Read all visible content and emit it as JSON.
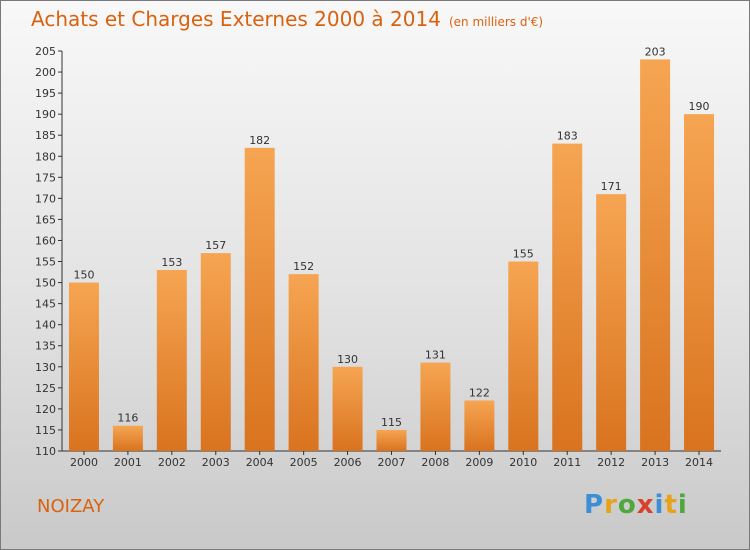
{
  "header": {
    "title": "Achats et Charges Externes 2000 à 2014",
    "subtitle": "(en milliers d'€)"
  },
  "footer": {
    "town": "NOIZAY",
    "brand": [
      "P",
      "r",
      "o",
      "x",
      "i",
      "t",
      "i"
    ]
  },
  "colors": {
    "title": "#d9620f",
    "bar_top": "#f6a552",
    "bar_bottom": "#d9731f",
    "brand": [
      "#3b8fd4",
      "#e8a21a",
      "#4fa83d",
      "#d8402c",
      "#3b8fd4",
      "#e8a21a",
      "#4fa83d"
    ]
  },
  "chart_data": {
    "type": "bar",
    "title": "Achats et Charges Externes 2000 à 2014",
    "subtitle": "(en milliers d'€)",
    "categories": [
      "2000",
      "2001",
      "2002",
      "2003",
      "2004",
      "2005",
      "2006",
      "2007",
      "2008",
      "2009",
      "2010",
      "2011",
      "2012",
      "2013",
      "2014"
    ],
    "values": [
      150,
      116,
      153,
      157,
      182,
      152,
      130,
      115,
      131,
      122,
      155,
      183,
      171,
      203,
      190
    ],
    "ylim": [
      110,
      205
    ],
    "yticks": [
      110,
      115,
      120,
      125,
      130,
      135,
      140,
      145,
      150,
      155,
      160,
      165,
      170,
      175,
      180,
      185,
      190,
      195,
      200,
      205
    ],
    "grid": false,
    "data_labels": true
  }
}
